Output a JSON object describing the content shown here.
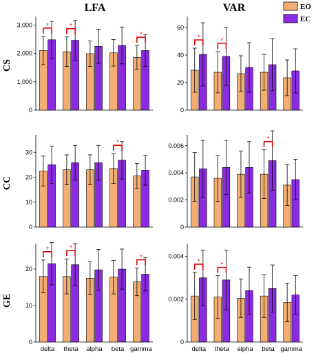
{
  "chart_data": {
    "type": "bar",
    "column_titles": [
      "LFA",
      "VAR"
    ],
    "row_labels": [
      "CS",
      "CC",
      "GE"
    ],
    "categories": [
      "delta",
      "theta",
      "alpha",
      "beta",
      "gamma"
    ],
    "legend": [
      {
        "name": "EO",
        "color": "#f4ae74"
      },
      {
        "name": "EC",
        "color": "#8a2be2"
      }
    ],
    "significance_marker": "*",
    "panels": [
      {
        "row": "CS",
        "column": "LFA",
        "ylim": [
          0,
          3300
        ],
        "yticks": [
          0,
          1000,
          2000,
          3000
        ],
        "ytick_labels": [
          "0",
          "1,000",
          "2,000",
          "3,000"
        ],
        "series": [
          {
            "name": "EO",
            "values": [
              2100,
              2060,
              1990,
              2020,
              1860
            ],
            "errors": [
              500,
              520,
              450,
              470,
              420
            ]
          },
          {
            "name": "EC",
            "values": [
              2480,
              2460,
              2250,
              2280,
              2100
            ],
            "errors": [
              650,
              700,
              600,
              650,
              560
            ]
          }
        ],
        "significant": [
          true,
          true,
          false,
          false,
          true
        ]
      },
      {
        "row": "CS",
        "column": "VAR",
        "ylim": [
          0,
          68
        ],
        "yticks": [
          0,
          20,
          40,
          60
        ],
        "ytick_labels": [
          "0",
          "20",
          "40",
          "60"
        ],
        "series": [
          {
            "name": "EO",
            "values": [
              29,
              27.5,
              26.5,
              27.5,
              23.5
            ],
            "errors": [
              16,
              15,
              13,
              13,
              13
            ]
          },
          {
            "name": "EC",
            "values": [
              40.5,
              39,
              31,
              33,
              28.5
            ],
            "errors": [
              23,
              21,
              18,
              19,
              16
            ]
          }
        ],
        "significant": [
          true,
          true,
          false,
          false,
          false
        ]
      },
      {
        "row": "CC",
        "column": "LFA",
        "ylim": [
          0,
          37
        ],
        "yticks": [
          0,
          10,
          20,
          30
        ],
        "ytick_labels": [
          "0",
          "10",
          "20",
          "30"
        ],
        "series": [
          {
            "name": "EO",
            "values": [
              22.5,
              23,
              23,
              23.5,
              20.5
            ],
            "errors": [
              6,
              6,
              6,
              6,
              5
            ]
          },
          {
            "name": "EC",
            "values": [
              25,
              25.8,
              25.8,
              26.8,
              22.8
            ],
            "errors": [
              7.5,
              7,
              7,
              7.5,
              6
            ]
          }
        ],
        "significant": [
          false,
          false,
          false,
          true,
          false
        ]
      },
      {
        "row": "CC",
        "column": "VAR",
        "ylim": [
          0,
          0.0068
        ],
        "yticks": [
          0,
          0.002,
          0.004,
          0.006
        ],
        "ytick_labels": [
          "0",
          "0.002",
          "0.004",
          "0.006"
        ],
        "series": [
          {
            "name": "EO",
            "values": [
              0.0037,
              0.0036,
              0.0039,
              0.0039,
              0.0031
            ],
            "errors": [
              0.0018,
              0.0017,
              0.0017,
              0.0018,
              0.0015
            ]
          },
          {
            "name": "EC",
            "values": [
              0.0043,
              0.0044,
              0.0044,
              0.0049,
              0.0035
            ],
            "errors": [
              0.0021,
              0.002,
              0.0019,
              0.0022,
              0.0015
            ]
          }
        ],
        "significant": [
          false,
          false,
          false,
          true,
          false
        ]
      },
      {
        "row": "GE",
        "column": "LFA",
        "ylim": [
          0,
          27
        ],
        "yticks": [
          0,
          10,
          20
        ],
        "ytick_labels": [
          "0",
          "10",
          "20"
        ],
        "series": [
          {
            "name": "EO",
            "values": [
              18,
              18,
              17.5,
              17.8,
              16.5
            ],
            "errors": [
              4.5,
              4.8,
              4.5,
              4.6,
              3.8
            ]
          },
          {
            "name": "EC",
            "values": [
              21.5,
              21.2,
              19.8,
              20,
              18.6
            ],
            "errors": [
              5.8,
              5.8,
              5.6,
              5.5,
              4.6
            ]
          }
        ],
        "significant": [
          true,
          true,
          false,
          false,
          true
        ]
      },
      {
        "row": "GE",
        "column": "VAR",
        "ylim": [
          0,
          0.0046
        ],
        "yticks": [
          0,
          0.002,
          0.004
        ],
        "ytick_labels": [
          "0",
          "0.002",
          "0.004"
        ],
        "series": [
          {
            "name": "EO",
            "values": [
              0.00215,
              0.0021,
              0.00205,
              0.00215,
              0.00185
            ],
            "errors": [
              0.0011,
              0.001,
              0.0009,
              0.001,
              0.0009
            ]
          },
          {
            "name": "EC",
            "values": [
              0.003,
              0.0029,
              0.0024,
              0.0025,
              0.0022
            ],
            "errors": [
              0.0013,
              0.0014,
              0.0011,
              0.0011,
              0.0009
            ]
          }
        ],
        "significant": [
          true,
          true,
          false,
          false,
          false
        ]
      }
    ]
  }
}
